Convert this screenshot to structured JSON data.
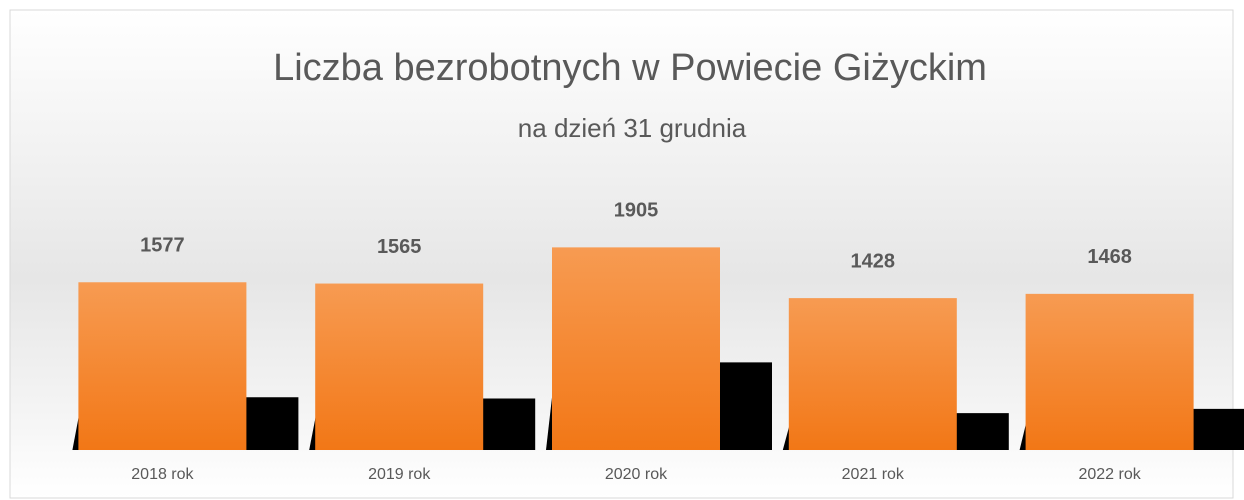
{
  "chart_data": {
    "type": "bar",
    "title": "Liczba bezrobotnych w Powiecie Giżyckim",
    "subtitle": "na dzień 31 grudnia",
    "categories": [
      "2018 rok",
      "2019 rok",
      "2020 rok",
      "2021 rok",
      "2022 rok"
    ],
    "values": [
      1577,
      1565,
      1905,
      1428,
      1468
    ],
    "color": "#f5883a",
    "ylim": [
      0,
      2200
    ]
  }
}
